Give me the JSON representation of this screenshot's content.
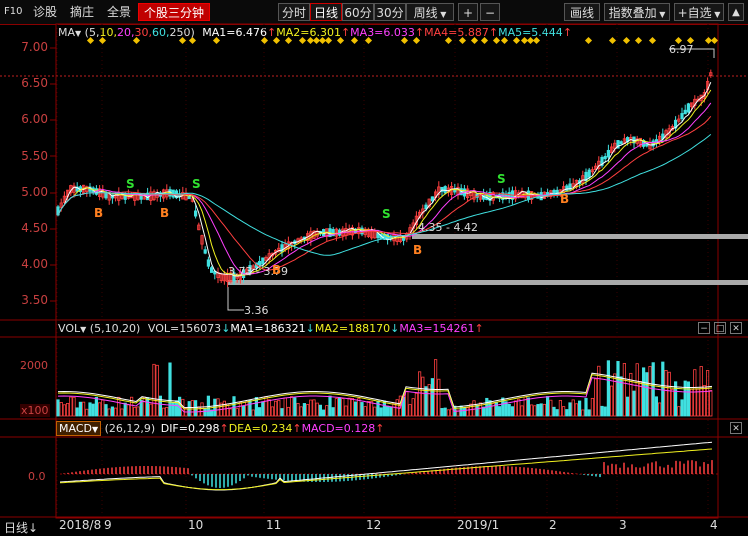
{
  "toolbar": {
    "f10": "F10",
    "diagnose": "诊股",
    "scrape": "摘庄",
    "panorama": "全景",
    "stock_three_min": "个股三分钟",
    "intraday": "分时",
    "daily": "日线",
    "min60": "60分",
    "min30": "30分",
    "weekly": "周线",
    "plus": "+",
    "minus": "−",
    "draw_line": "画线",
    "index_overlay": "指数叠加",
    "add_watchlist": "+自选"
  },
  "main_legend": {
    "ma": "MA",
    "params_prefix": "(5,",
    "params_p2": "10,",
    "params_p3": "20,",
    "params_p4": "30,",
    "params_p5": "60,",
    "params_p6": "250)",
    "ma1": "MA1=6.476",
    "ma2": "MA2=6.301",
    "ma3": "MA3=6.033",
    "ma4": "MA4=5.887",
    "ma5": "MA5=5.444"
  },
  "price_axis": [
    "7.00",
    "6.50",
    "6.00",
    "5.50",
    "5.00",
    "4.50",
    "4.00",
    "3.50"
  ],
  "annotations": {
    "high": "6.97",
    "low": "3.36",
    "low2": "3.73 - 3.79",
    "mid": "4.35 - 4.42"
  },
  "signals": [
    {
      "text": "S",
      "color": "#30e030"
    },
    {
      "text": "S",
      "color": "#30e030"
    },
    {
      "text": "S",
      "color": "#30e030"
    },
    {
      "text": "S",
      "color": "#30e030"
    },
    {
      "text": "B",
      "color": "#ff8020"
    },
    {
      "text": "B",
      "color": "#ff8020"
    },
    {
      "text": "B",
      "color": "#ff8020"
    },
    {
      "text": "B",
      "color": "#ff8020"
    },
    {
      "text": "B",
      "color": "#ff8020"
    }
  ],
  "vol_legend": {
    "name": "VOL",
    "params": "(5,10,20)",
    "vol": "VOL=156073",
    "ma1": "MA1=186321",
    "ma2": "MA2=188170",
    "ma3": "MA3=154261"
  },
  "vol_axis": {
    "top": "2000",
    "bottom": "x100"
  },
  "macd_legend": {
    "name": "MACD",
    "params": "(26,12,9)",
    "dif": "DIF=0.298",
    "dea": "DEA=0.234",
    "macd": "MACD=0.128"
  },
  "macd_axis": {
    "zero": "0.0"
  },
  "x_axis": {
    "period": "日线",
    "labels": [
      "2018/8",
      "9",
      "10",
      "11",
      "12",
      "2019/1",
      "2",
      "3",
      "4"
    ]
  },
  "colors": {
    "up": "#ff4040",
    "down": "#40e0e0",
    "ma1": "#ffffff",
    "ma2": "#f0f020",
    "ma3": "#ff40ff",
    "ma4": "#ff4040",
    "ma5": "#40e0e0"
  }
}
